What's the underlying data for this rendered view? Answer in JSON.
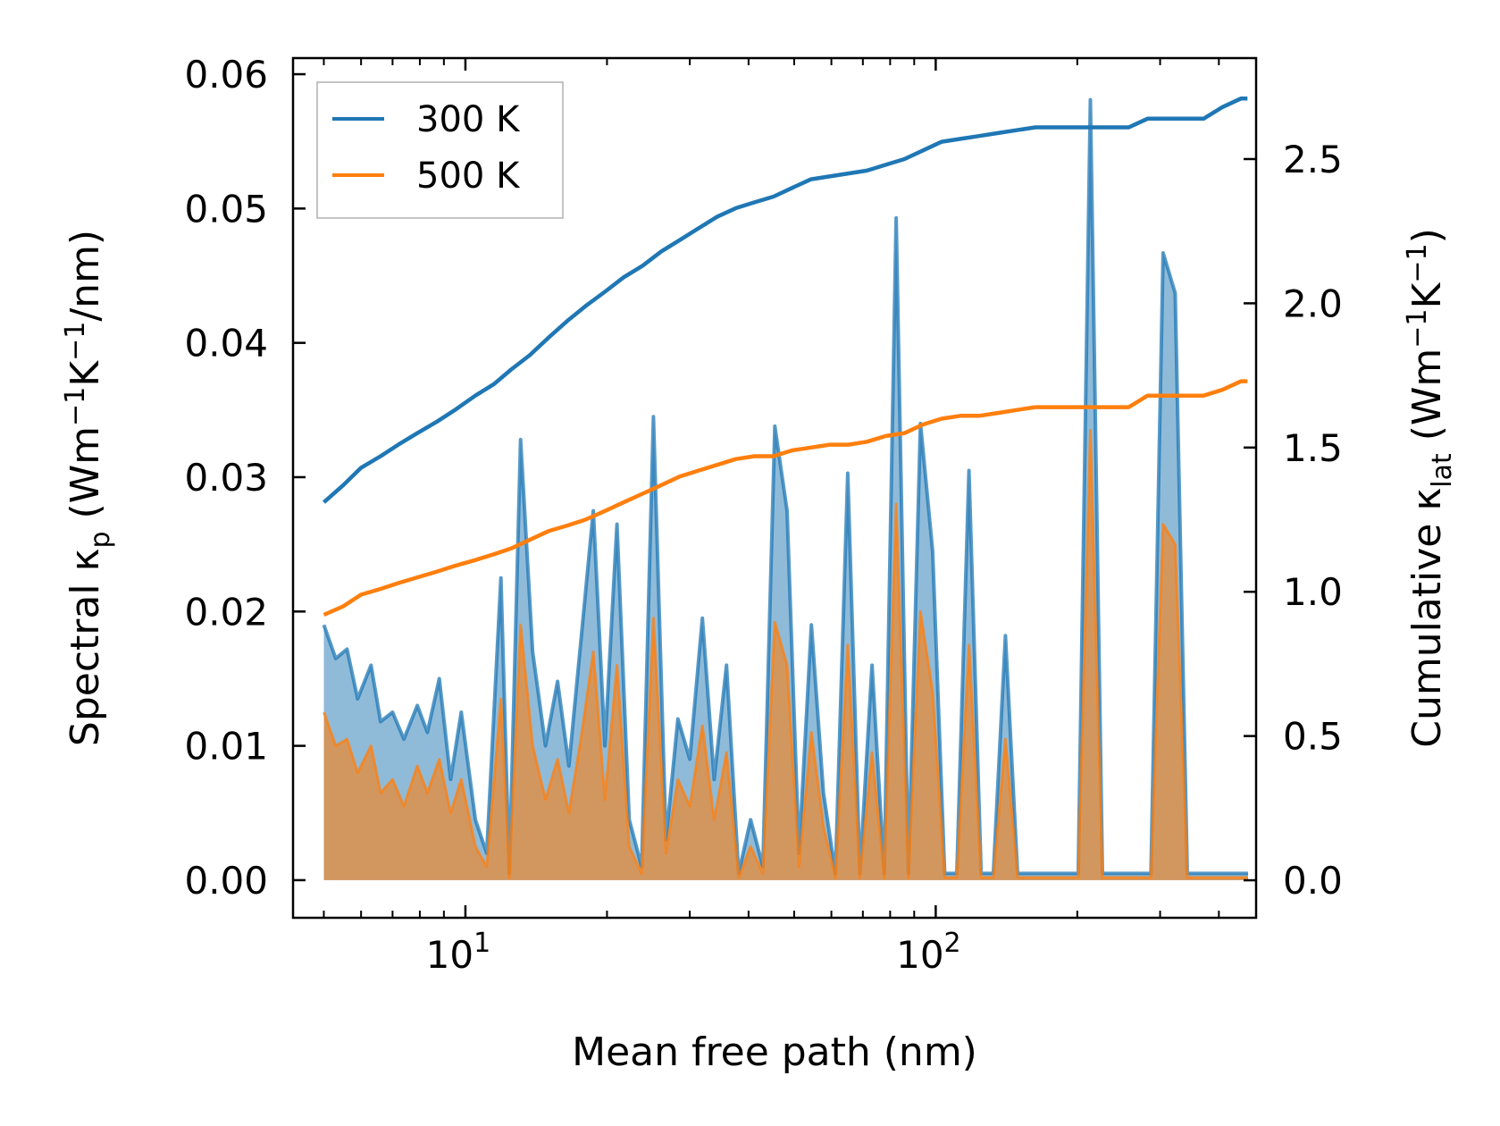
{
  "chart_data": {
    "type": "line",
    "xlabel": "Mean free path (nm)",
    "ylabel_left": {
      "main": "Spectral κ",
      "main_sub": "p",
      "unit_pre": " (Wm",
      "sup1": "−1",
      "unit_mid": "K",
      "sup2": "−1",
      "unit_post": "/nm)"
    },
    "ylabel_right": {
      "main": "Cumulative κ",
      "main_sub": "lat",
      "unit_pre": " (Wm",
      "sup1": "−1",
      "unit_mid": "K",
      "sup2": "−1",
      "unit_post": ")"
    },
    "x_scale": "log",
    "xlim": [
      4.3,
      480
    ],
    "ylim_left": [
      -0.0028,
      0.0612
    ],
    "ylim_right": [
      -0.13,
      2.85
    ],
    "x_ticks": [
      {
        "value": 10,
        "base": "10",
        "exp": "1"
      },
      {
        "value": 100,
        "base": "10",
        "exp": "2"
      }
    ],
    "y_left_ticks": [
      {
        "value": 0.0,
        "label": "0.00"
      },
      {
        "value": 0.01,
        "label": "0.01"
      },
      {
        "value": 0.02,
        "label": "0.02"
      },
      {
        "value": 0.03,
        "label": "0.03"
      },
      {
        "value": 0.04,
        "label": "0.04"
      },
      {
        "value": 0.05,
        "label": "0.05"
      },
      {
        "value": 0.06,
        "label": "0.06"
      }
    ],
    "y_right_ticks": [
      {
        "value": 0.0,
        "label": "0.0"
      },
      {
        "value": 0.5,
        "label": "0.5"
      },
      {
        "value": 1.0,
        "label": "1.0"
      },
      {
        "value": 1.5,
        "label": "1.5"
      },
      {
        "value": 2.0,
        "label": "2.0"
      },
      {
        "value": 2.5,
        "label": "2.5"
      }
    ],
    "legend": {
      "position": "top-left",
      "entries": [
        {
          "label": "300 K",
          "color": "#1f77b4"
        },
        {
          "label": "500 K",
          "color": "#ff7f0e"
        }
      ]
    },
    "series": [
      {
        "name": "300 K",
        "color": "#1f77b4",
        "kind": "spectral",
        "axis": "left",
        "x": [
          5.0,
          5.3,
          5.6,
          5.9,
          6.3,
          6.6,
          7.0,
          7.4,
          7.9,
          8.3,
          8.8,
          9.3,
          9.8,
          10.5,
          11.1,
          11.9,
          12.4,
          13.1,
          13.9,
          14.8,
          15.7,
          16.6,
          17.6,
          18.7,
          19.8,
          21.0,
          22.3,
          23.7,
          25.1,
          26.7,
          28.3,
          30.0,
          31.9,
          33.8,
          35.9,
          38.1,
          40.4,
          42.9,
          45.5,
          48.3,
          51.2,
          54.4,
          57.7,
          61.2,
          65.0,
          69.0,
          73.2,
          77.7,
          82.4,
          87.5,
          92.8,
          98.5,
          104.5,
          110.9,
          117.7,
          124.9,
          132.6,
          140.7,
          149.3,
          158.4,
          168.1,
          178.4,
          189.3,
          200.9,
          213.2,
          226.2,
          240.1,
          254.8,
          270.3,
          286.9,
          304.4,
          323.0,
          342.8,
          363.8,
          386.0,
          409.7,
          434.7,
          461.4
        ],
        "values": [
          0.019,
          0.0165,
          0.0172,
          0.0135,
          0.016,
          0.0118,
          0.0125,
          0.0105,
          0.013,
          0.011,
          0.015,
          0.0075,
          0.0125,
          0.0045,
          0.002,
          0.0225,
          0.0005,
          0.0328,
          0.017,
          0.01,
          0.0148,
          0.0085,
          0.0178,
          0.0275,
          0.01,
          0.0265,
          0.0045,
          0.001,
          0.0345,
          0.003,
          0.012,
          0.009,
          0.0195,
          0.0075,
          0.016,
          0.0005,
          0.0045,
          0.001,
          0.0338,
          0.0275,
          0.002,
          0.019,
          0.0065,
          0.0005,
          0.0303,
          0.0005,
          0.016,
          0.0005,
          0.0493,
          0.0005,
          0.034,
          0.0245,
          0.0005,
          0.0005,
          0.0305,
          0.0005,
          0.0005,
          0.0182,
          0.0005,
          0.0005,
          0.0005,
          0.0005,
          0.0005,
          0.0005,
          0.0581,
          0.0005,
          0.0005,
          0.0005,
          0.0005,
          0.0005,
          0.0467,
          0.0437,
          0.0005,
          0.0005,
          0.0005,
          0.0005,
          0.0005,
          0.0005
        ]
      },
      {
        "name": "500 K",
        "color": "#ff7f0e",
        "kind": "spectral",
        "axis": "left",
        "x": [
          5.0,
          5.3,
          5.6,
          5.9,
          6.3,
          6.6,
          7.0,
          7.4,
          7.9,
          8.3,
          8.8,
          9.3,
          9.8,
          10.5,
          11.1,
          11.9,
          12.4,
          13.1,
          13.9,
          14.8,
          15.7,
          16.6,
          17.6,
          18.7,
          19.8,
          21.0,
          22.3,
          23.7,
          25.1,
          26.7,
          28.3,
          30.0,
          31.9,
          33.8,
          35.9,
          38.1,
          40.4,
          42.9,
          45.5,
          48.3,
          51.2,
          54.4,
          57.7,
          61.2,
          65.0,
          69.0,
          73.2,
          77.7,
          82.4,
          87.5,
          92.8,
          98.5,
          104.5,
          110.9,
          117.7,
          124.9,
          132.6,
          140.7,
          149.3,
          158.4,
          168.1,
          178.4,
          189.3,
          200.9,
          213.2,
          226.2,
          240.1,
          254.8,
          270.3,
          286.9,
          304.4,
          323.0,
          342.8,
          363.8,
          386.0,
          409.7,
          434.7,
          461.4
        ],
        "values": [
          0.0125,
          0.01,
          0.0105,
          0.008,
          0.01,
          0.0065,
          0.0075,
          0.0055,
          0.0085,
          0.0065,
          0.009,
          0.005,
          0.0075,
          0.0025,
          0.001,
          0.0135,
          0.0002,
          0.019,
          0.01,
          0.006,
          0.009,
          0.005,
          0.0105,
          0.017,
          0.006,
          0.016,
          0.0025,
          0.0005,
          0.0195,
          0.002,
          0.0075,
          0.0055,
          0.0115,
          0.0045,
          0.0095,
          0.0002,
          0.0025,
          0.0005,
          0.0192,
          0.016,
          0.001,
          0.011,
          0.004,
          0.0002,
          0.0175,
          0.0002,
          0.0095,
          0.0002,
          0.028,
          0.0002,
          0.02,
          0.014,
          0.0002,
          0.0002,
          0.0175,
          0.0002,
          0.0002,
          0.0105,
          0.0002,
          0.0002,
          0.0002,
          0.0002,
          0.0002,
          0.0002,
          0.0335,
          0.0002,
          0.0002,
          0.0002,
          0.0002,
          0.0002,
          0.0265,
          0.025,
          0.0002,
          0.0002,
          0.0002,
          0.0002,
          0.0002,
          0.0002
        ]
      },
      {
        "name": "300 K",
        "color": "#1f77b4",
        "kind": "cumulative",
        "axis": "right",
        "x": [
          5.0,
          5.5,
          6.0,
          6.6,
          7.2,
          7.9,
          8.7,
          9.5,
          10.5,
          11.5,
          12.5,
          13.7,
          15.0,
          16.5,
          18.0,
          19.8,
          21.7,
          23.8,
          26.1,
          28.6,
          31.3,
          34.3,
          37.6,
          41.2,
          45.2,
          49.5,
          54.3,
          59.5,
          65.2,
          71.4,
          78.3,
          85.8,
          94.0,
          103.0,
          112.9,
          123.7,
          135.6,
          148.6,
          162.9,
          178.5,
          195.6,
          214.3,
          234.9,
          257.4,
          282.1,
          309.1,
          338.8,
          371.3,
          406.9,
          446.0,
          460.0
        ],
        "values": [
          1.31,
          1.37,
          1.43,
          1.47,
          1.51,
          1.55,
          1.59,
          1.63,
          1.68,
          1.72,
          1.77,
          1.82,
          1.88,
          1.94,
          1.99,
          2.04,
          2.09,
          2.13,
          2.18,
          2.22,
          2.26,
          2.3,
          2.33,
          2.35,
          2.37,
          2.4,
          2.43,
          2.44,
          2.45,
          2.46,
          2.48,
          2.5,
          2.53,
          2.56,
          2.57,
          2.58,
          2.59,
          2.6,
          2.61,
          2.61,
          2.61,
          2.61,
          2.61,
          2.61,
          2.64,
          2.64,
          2.64,
          2.64,
          2.68,
          2.71,
          2.71
        ]
      },
      {
        "name": "500 K",
        "color": "#ff7f0e",
        "kind": "cumulative",
        "axis": "right",
        "x": [
          5.0,
          5.5,
          6.0,
          6.6,
          7.2,
          7.9,
          8.7,
          9.5,
          10.5,
          11.5,
          12.5,
          13.7,
          15.0,
          16.5,
          18.0,
          19.8,
          21.7,
          23.8,
          26.1,
          28.6,
          31.3,
          34.3,
          37.6,
          41.2,
          45.2,
          49.5,
          54.3,
          59.5,
          65.2,
          71.4,
          78.3,
          85.8,
          94.0,
          103.0,
          112.9,
          123.7,
          135.6,
          148.6,
          162.9,
          178.5,
          195.6,
          214.3,
          234.9,
          257.4,
          282.1,
          309.1,
          338.8,
          371.3,
          406.9,
          446.0,
          460.0
        ],
        "values": [
          0.92,
          0.95,
          0.99,
          1.01,
          1.03,
          1.05,
          1.07,
          1.09,
          1.11,
          1.13,
          1.15,
          1.18,
          1.21,
          1.23,
          1.25,
          1.28,
          1.31,
          1.34,
          1.37,
          1.4,
          1.42,
          1.44,
          1.46,
          1.47,
          1.47,
          1.49,
          1.5,
          1.51,
          1.51,
          1.52,
          1.54,
          1.55,
          1.58,
          1.6,
          1.61,
          1.61,
          1.62,
          1.63,
          1.64,
          1.64,
          1.64,
          1.64,
          1.64,
          1.64,
          1.68,
          1.68,
          1.68,
          1.68,
          1.7,
          1.73,
          1.73
        ]
      }
    ]
  }
}
